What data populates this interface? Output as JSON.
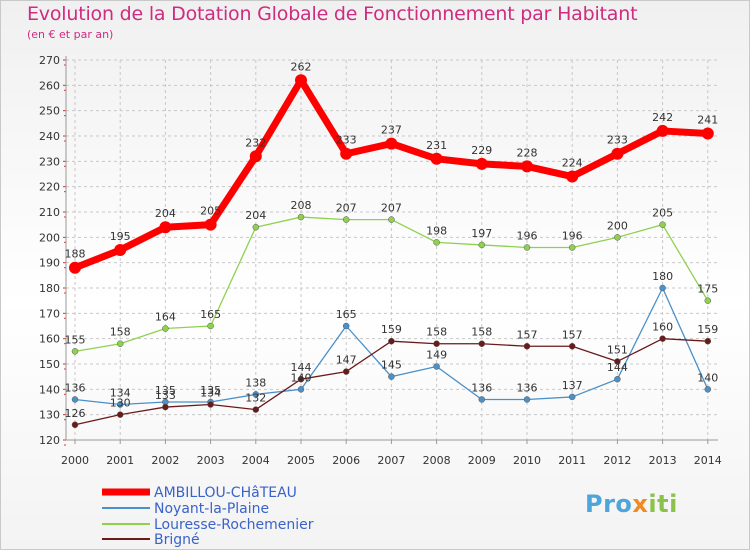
{
  "title": "Evolution de la Dotation Globale de Fonctionnement par Habitant",
  "subtitle": "(en € et par an)",
  "logo": {
    "text": "Proxiti",
    "parts": [
      "Pro",
      "x",
      "iti"
    ]
  },
  "chart_data": {
    "type": "line",
    "title": "Evolution de la Dotation Globale de Fonctionnement par Habitant",
    "xlabel": "",
    "ylabel": "(en € et par an)",
    "ylim": [
      120,
      270
    ],
    "yticks": [
      120,
      130,
      140,
      150,
      160,
      170,
      180,
      190,
      200,
      210,
      220,
      230,
      240,
      250,
      260,
      270
    ],
    "categories": [
      "2000",
      "2001",
      "2002",
      "2003",
      "2004",
      "2005",
      "2006",
      "2007",
      "2008",
      "2009",
      "2010",
      "2011",
      "2012",
      "2013",
      "2014"
    ],
    "grid": true,
    "legend": "bottom-left",
    "series": [
      {
        "name": "AMBILLOU-CHâTEAU",
        "color": "#ff0000",
        "values": [
          188,
          195,
          204,
          205,
          232,
          262,
          233,
          237,
          231,
          229,
          228,
          224,
          233,
          242,
          241
        ]
      },
      {
        "name": "Noyant-la-Plaine",
        "color": "#4a90c9",
        "values": [
          136,
          134,
          135,
          135,
          138,
          140,
          165,
          145,
          149,
          136,
          136,
          137,
          144,
          180,
          140
        ]
      },
      {
        "name": "Louresse-Rochemenier",
        "color": "#8fd14f",
        "values": [
          155,
          158,
          164,
          165,
          204,
          208,
          207,
          207,
          198,
          197,
          196,
          196,
          200,
          205,
          175
        ]
      },
      {
        "name": "Brigné",
        "color": "#6b1a1a",
        "values": [
          126,
          130,
          133,
          134,
          132,
          144,
          147,
          159,
          158,
          158,
          157,
          157,
          151,
          160,
          159
        ]
      }
    ]
  }
}
